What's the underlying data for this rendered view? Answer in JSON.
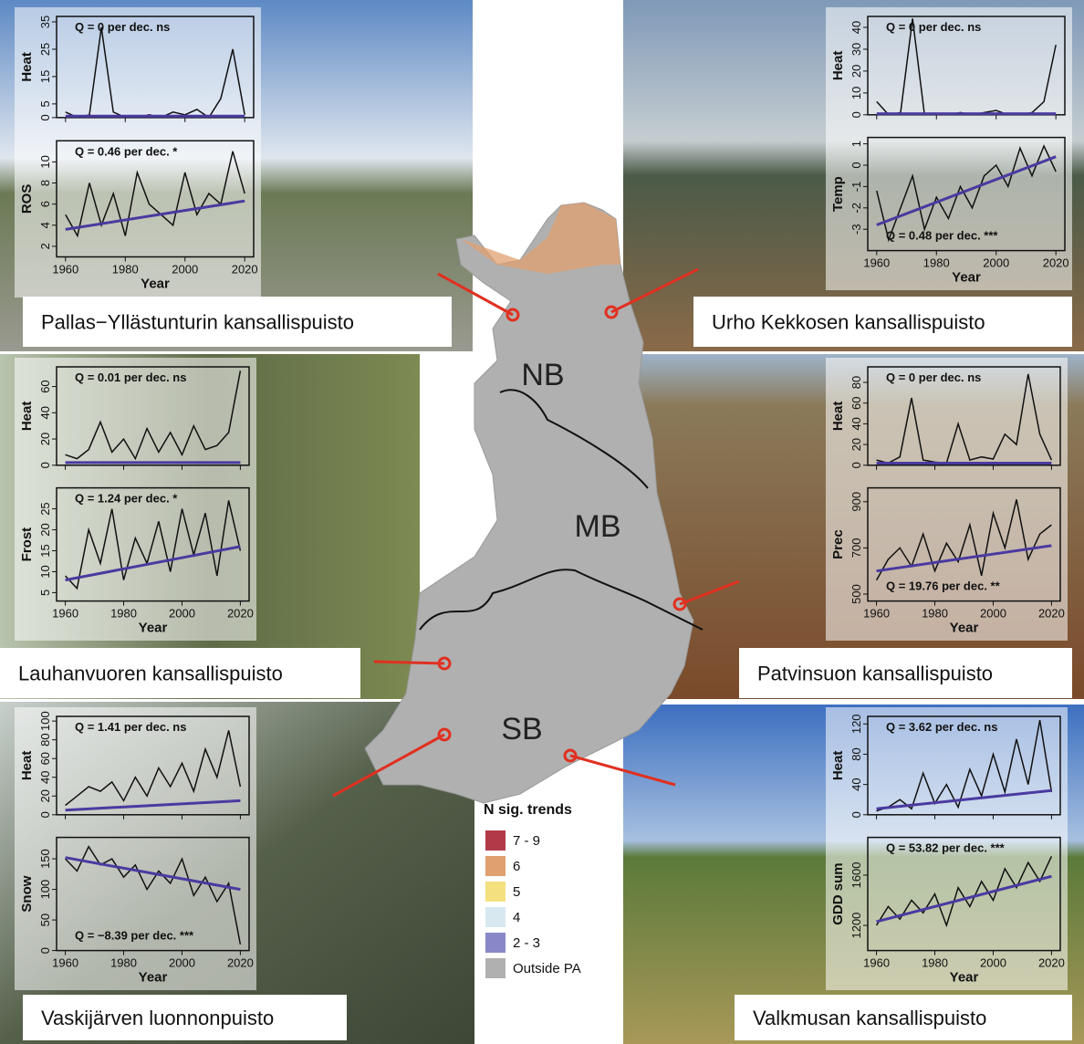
{
  "panels": [
    {
      "caption": "Pallas−Yllästunturin kansallispuisto",
      "xlabel": "Year",
      "xlim": [
        1957,
        2023
      ],
      "xticks": [
        1960,
        1980,
        2000,
        2020
      ],
      "x": [
        1960,
        1964,
        1968,
        1972,
        1976,
        1980,
        1984,
        1988,
        1992,
        1996,
        2000,
        2004,
        2008,
        2012,
        2016,
        2020
      ],
      "charts": [
        {
          "type": "line",
          "ylabel": "Heat",
          "annotation": "Q = 0 per dec. ns",
          "ylim": [
            0,
            37
          ],
          "yticks": [
            0,
            5,
            15,
            25,
            35
          ],
          "values": [
            2,
            0,
            1,
            33,
            2,
            0,
            0,
            1,
            0,
            2,
            1,
            3,
            0,
            7,
            25,
            1
          ],
          "trend": {
            "x": [
              1960,
              2020
            ],
            "values": [
              0.5,
              0.5
            ]
          }
        },
        {
          "type": "line",
          "ylabel": "ROS",
          "annotation": "Q = 0.46 per dec. *",
          "ylim": [
            1,
            12
          ],
          "yticks": [
            2,
            4,
            6,
            8,
            10
          ],
          "values": [
            5,
            3,
            8,
            4,
            7,
            3,
            9,
            6,
            5,
            4,
            9,
            5,
            7,
            6,
            11,
            7
          ],
          "trend": {
            "x": [
              1960,
              2020
            ],
            "values": [
              3.6,
              6.3
            ]
          }
        }
      ]
    },
    {
      "caption": "Urho Kekkosen kansallispuisto",
      "xlabel": "Year",
      "xlim": [
        1957,
        2023
      ],
      "xticks": [
        1960,
        1980,
        2000,
        2020
      ],
      "x": [
        1960,
        1964,
        1968,
        1972,
        1976,
        1980,
        1984,
        1988,
        1992,
        1996,
        2000,
        2004,
        2008,
        2012,
        2016,
        2020
      ],
      "charts": [
        {
          "type": "line",
          "ylabel": "Heat",
          "annotation": "Q = 0 per dec. ns",
          "ylim": [
            0,
            45
          ],
          "yticks": [
            0,
            10,
            20,
            30,
            40
          ],
          "values": [
            6,
            0,
            1,
            44,
            0,
            0,
            0,
            1,
            0,
            1,
            2,
            0,
            0,
            1,
            6,
            32
          ],
          "trend": {
            "x": [
              1960,
              2020
            ],
            "values": [
              0.5,
              0.5
            ]
          }
        },
        {
          "type": "line",
          "ylabel": "Temp",
          "annotation": "Q = 0.48 per dec. ***",
          "ylim": [
            -4,
            1.3
          ],
          "yticks": [
            -3,
            -2,
            -1,
            0,
            1
          ],
          "values": [
            -1.2,
            -3.5,
            -2,
            -0.5,
            -3,
            -1.5,
            -2.5,
            -1,
            -2,
            -0.5,
            0,
            -1,
            0.8,
            -0.5,
            0.9,
            -0.3
          ],
          "trend": {
            "x": [
              1960,
              2020
            ],
            "values": [
              -2.8,
              0.4
            ]
          }
        }
      ]
    },
    {
      "caption": "Lauhanvuoren kansallispuisto",
      "xlabel": "Year",
      "xlim": [
        1957,
        2023
      ],
      "xticks": [
        1960,
        1980,
        2000,
        2020
      ],
      "x": [
        1960,
        1964,
        1968,
        1972,
        1976,
        1980,
        1984,
        1988,
        1992,
        1996,
        2000,
        2004,
        2008,
        2012,
        2016,
        2020
      ],
      "charts": [
        {
          "type": "line",
          "ylabel": "Heat",
          "annotation": "Q = 0.01 per dec. ns",
          "ylim": [
            0,
            75
          ],
          "yticks": [
            0,
            20,
            40,
            60
          ],
          "values": [
            8,
            5,
            12,
            33,
            10,
            20,
            5,
            28,
            10,
            25,
            8,
            30,
            12,
            15,
            25,
            72
          ],
          "trend": {
            "x": [
              1960,
              2020
            ],
            "values": [
              2,
              2
            ]
          }
        },
        {
          "type": "line",
          "ylabel": "Frost",
          "annotation": "Q = 1.24 per dec. *",
          "ylim": [
            3,
            30
          ],
          "yticks": [
            5,
            10,
            15,
            20,
            25
          ],
          "values": [
            9,
            6,
            20,
            12,
            25,
            8,
            18,
            12,
            22,
            10,
            25,
            14,
            24,
            9,
            27,
            15
          ],
          "trend": {
            "x": [
              1960,
              2020
            ],
            "values": [
              8,
              16
            ]
          }
        }
      ]
    },
    {
      "caption": "Patvinsuon kansallispuisto",
      "xlabel": "Year",
      "xlim": [
        1957,
        2023
      ],
      "xticks": [
        1960,
        1980,
        2000,
        2020
      ],
      "x": [
        1960,
        1964,
        1968,
        1972,
        1976,
        1980,
        1984,
        1988,
        1992,
        1996,
        2000,
        2004,
        2008,
        2012,
        2016,
        2020
      ],
      "charts": [
        {
          "type": "line",
          "ylabel": "Heat",
          "annotation": "Q = 0 per dec. ns",
          "ylim": [
            0,
            95
          ],
          "yticks": [
            0,
            20,
            40,
            60,
            80
          ],
          "values": [
            5,
            2,
            8,
            65,
            5,
            3,
            2,
            40,
            5,
            8,
            6,
            30,
            20,
            88,
            30,
            5
          ],
          "trend": {
            "x": [
              1960,
              2020
            ],
            "values": [
              2,
              2
            ]
          }
        },
        {
          "type": "line",
          "ylabel": "Prec",
          "annotation": "Q = 19.76 per dec. **",
          "ylim": [
            470,
            960
          ],
          "yticks": [
            500,
            700,
            900
          ],
          "values": [
            560,
            650,
            700,
            620,
            760,
            600,
            720,
            640,
            800,
            580,
            850,
            700,
            910,
            650,
            760,
            800
          ],
          "trend": {
            "x": [
              1960,
              2020
            ],
            "values": [
              600,
              710
            ]
          }
        }
      ]
    },
    {
      "caption": "Vaskijärven luonnonpuisto",
      "xlabel": "Year",
      "xlim": [
        1957,
        2023
      ],
      "xticks": [
        1960,
        1980,
        2000,
        2020
      ],
      "x": [
        1960,
        1964,
        1968,
        1972,
        1976,
        1980,
        1984,
        1988,
        1992,
        1996,
        2000,
        2004,
        2008,
        2012,
        2016,
        2020
      ],
      "charts": [
        {
          "type": "line",
          "ylabel": "Heat",
          "annotation": "Q = 1.41 per dec. ns",
          "ylim": [
            0,
            105
          ],
          "yticks": [
            0,
            20,
            40,
            60,
            80,
            100
          ],
          "values": [
            10,
            20,
            30,
            25,
            35,
            15,
            40,
            20,
            50,
            30,
            55,
            25,
            70,
            40,
            90,
            30
          ],
          "trend": {
            "x": [
              1960,
              2020
            ],
            "values": [
              5,
              15
            ]
          }
        },
        {
          "type": "line",
          "ylabel": "Snow",
          "annotation": "Q = −8.39 per dec. ***",
          "ylim": [
            0,
            185
          ],
          "yticks": [
            0,
            50,
            100,
            150
          ],
          "values": [
            150,
            130,
            170,
            140,
            150,
            120,
            140,
            100,
            130,
            110,
            150,
            90,
            120,
            80,
            110,
            10
          ],
          "trend": {
            "x": [
              1960,
              2020
            ],
            "values": [
              152,
              100
            ]
          }
        }
      ]
    },
    {
      "caption": "Valkmusan kansallispuisto",
      "xlabel": "Year",
      "xlim": [
        1957,
        2023
      ],
      "xticks": [
        1960,
        1980,
        2000,
        2020
      ],
      "x": [
        1960,
        1964,
        1968,
        1972,
        1976,
        1980,
        1984,
        1988,
        1992,
        1996,
        2000,
        2004,
        2008,
        2012,
        2016,
        2020
      ],
      "charts": [
        {
          "type": "line",
          "ylabel": "Heat",
          "annotation": "Q = 3.62 per dec. ns",
          "ylim": [
            0,
            130
          ],
          "yticks": [
            0,
            40,
            80,
            120
          ],
          "values": [
            5,
            10,
            20,
            8,
            55,
            15,
            40,
            10,
            60,
            25,
            80,
            30,
            100,
            40,
            125,
            30
          ],
          "trend": {
            "x": [
              1960,
              2020
            ],
            "values": [
              8,
              32
            ]
          }
        },
        {
          "type": "line",
          "ylabel": "GDD sum",
          "annotation": "Q = 53.82 per dec. ***",
          "ylim": [
            1000,
            1900
          ],
          "yticks": [
            1200,
            1600
          ],
          "values": [
            1200,
            1350,
            1250,
            1400,
            1300,
            1450,
            1200,
            1500,
            1350,
            1550,
            1400,
            1650,
            1500,
            1700,
            1550,
            1750
          ],
          "trend": {
            "x": [
              1960,
              2020
            ],
            "values": [
              1230,
              1590
            ]
          }
        }
      ]
    }
  ],
  "map": {
    "zones": [
      "NB",
      "MB",
      "SB"
    ],
    "legend_title": "N sig. trends",
    "legend": [
      {
        "label": "7 - 9",
        "color": "#b03a48"
      },
      {
        "label": "6",
        "color": "#e0a070"
      },
      {
        "label": "5",
        "color": "#f5e080"
      },
      {
        "label": "4",
        "color": "#d8e8f0"
      },
      {
        "label": "2 - 3",
        "color": "#8888c8"
      },
      {
        "label": "Outside PA",
        "color": "#b0b0b0"
      }
    ]
  }
}
